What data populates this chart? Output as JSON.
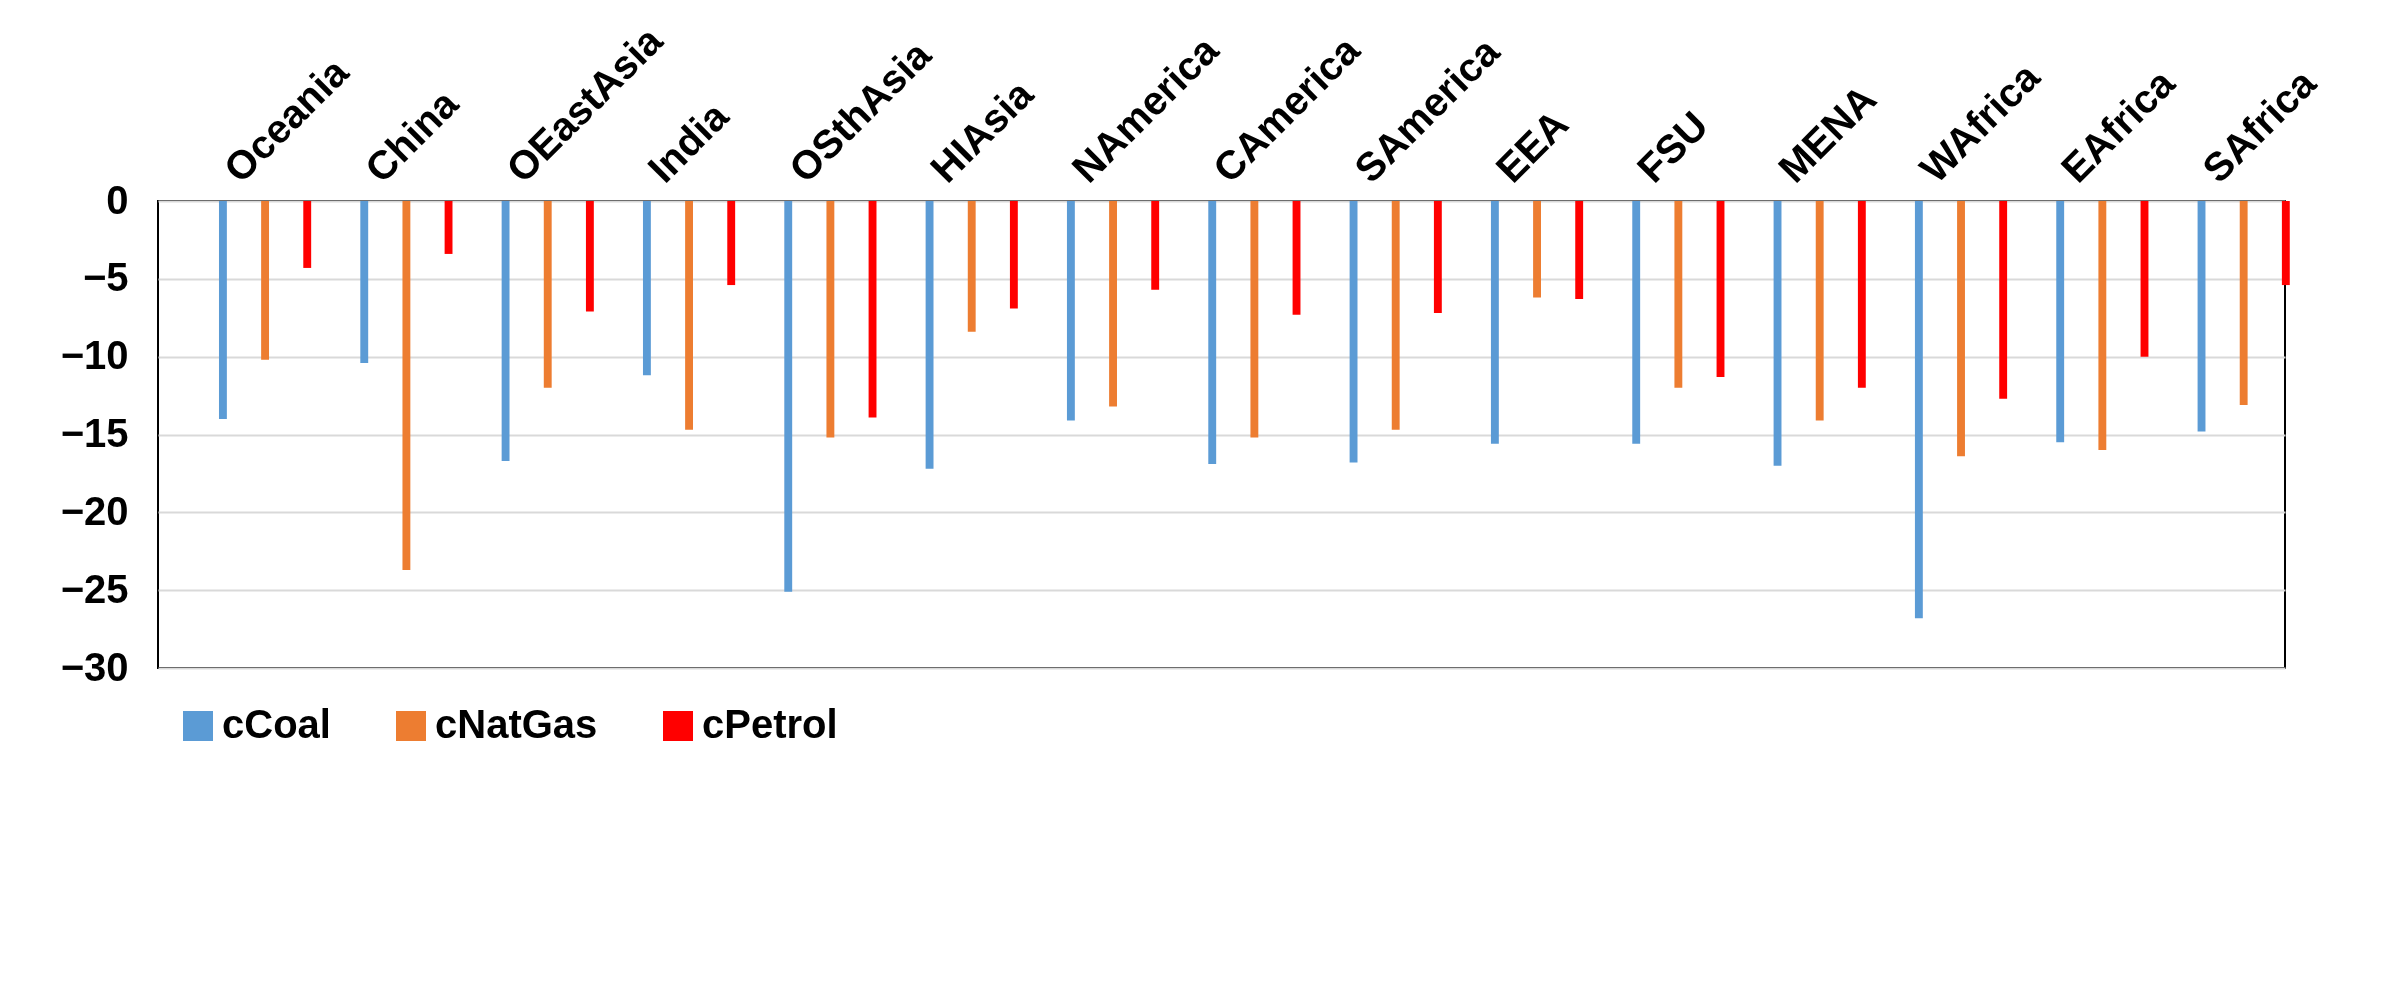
{
  "chart_data": {
    "type": "bar",
    "categories": [
      "Oceania",
      "China",
      "OEastAsia",
      "India",
      "OSthAsia",
      "HIAsia",
      "NAmerica",
      "CAmerica",
      "SAmerica",
      "EEA",
      "FSU",
      "MENA",
      "WAfrica",
      "EAfrica",
      "SAfrica"
    ],
    "series": [
      {
        "name": "cCoal",
        "color": "#5b9bd5",
        "values": [
          -14.0,
          -10.4,
          -16.7,
          -11.2,
          -25.1,
          -17.2,
          -14.1,
          -16.9,
          -16.8,
          -15.6,
          -15.6,
          -17.0,
          -26.8,
          -15.5,
          -14.8
        ]
      },
      {
        "name": "cNatGas",
        "color": "#ed7d31",
        "values": [
          -10.2,
          -23.7,
          -12.0,
          -14.7,
          -15.2,
          -8.4,
          -13.2,
          -15.2,
          -14.7,
          -6.2,
          -12.0,
          -14.1,
          -16.4,
          -16.0,
          -13.1
        ]
      },
      {
        "name": "cPetrol",
        "color": "#ff0000",
        "values": [
          -4.3,
          -3.4,
          -7.1,
          -5.4,
          -13.9,
          -6.9,
          -5.7,
          -7.3,
          -7.2,
          -6.3,
          -11.3,
          -12.0,
          -12.7,
          -10.0,
          -5.4
        ]
      }
    ],
    "ylim": [
      -30,
      0
    ],
    "yticks": [
      -30,
      -25,
      -20,
      -15,
      -10,
      -5,
      0
    ],
    "grid": "y",
    "legend": "bottom"
  }
}
